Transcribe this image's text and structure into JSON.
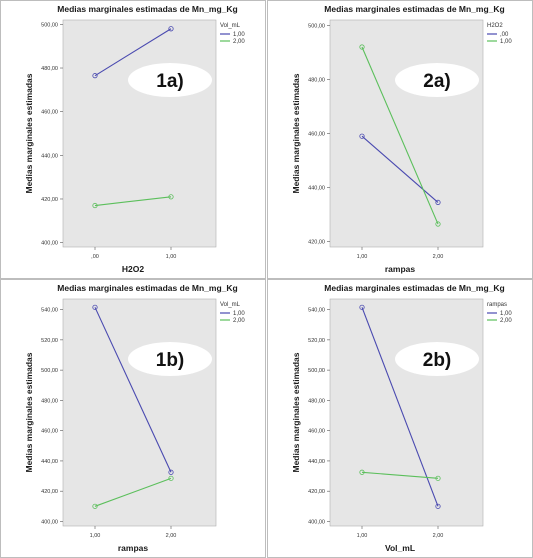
{
  "colors": {
    "plot_bg": "#e6e6e6",
    "series1": "#4a4ab0",
    "series2": "#5bbf5b",
    "badge_bg": "#ffffff"
  },
  "chart_data": [
    {
      "type": "line",
      "id": "1a",
      "badge": "1a)",
      "title": "Medias marginales estimadas de Mn_mg_Kg",
      "xlabel": "H2O2",
      "ylabel": "Medias marginales estimadas",
      "categories": [
        ",00",
        "1,00"
      ],
      "yticks": [
        "400,00",
        "420,00",
        "440,00",
        "460,00",
        "480,00",
        "500,00"
      ],
      "ylim": [
        398,
        502
      ],
      "legend_title": "Vol_mL",
      "series": [
        {
          "name": "1,00",
          "values": [
            476.5,
            498.0
          ]
        },
        {
          "name": "2,00",
          "values": [
            417.0,
            421.0
          ]
        }
      ]
    },
    {
      "type": "line",
      "id": "2a",
      "badge": "2a)",
      "title": "Medias marginales estimadas de Mn_mg_Kg",
      "xlabel": "rampas",
      "ylabel": "Medias marginales estimadas",
      "categories": [
        "1,00",
        "2,00"
      ],
      "yticks": [
        "420,00",
        "440,00",
        "460,00",
        "480,00",
        "500,00"
      ],
      "ylim": [
        418,
        502
      ],
      "legend_title": "H2O2",
      "series": [
        {
          "name": ",00",
          "values": [
            459.0,
            434.5
          ]
        },
        {
          "name": "1,00",
          "values": [
            492.0,
            426.5
          ]
        }
      ]
    },
    {
      "type": "line",
      "id": "1b",
      "badge": "1b)",
      "title": "Medias marginales estimadas de Mn_mg_Kg",
      "xlabel": "rampas",
      "ylabel": "Medias marginales estimadas",
      "categories": [
        "1,00",
        "2,00"
      ],
      "yticks": [
        "400,00",
        "420,00",
        "440,00",
        "460,00",
        "480,00",
        "500,00",
        "520,00",
        "540,00"
      ],
      "ylim": [
        397,
        547
      ],
      "legend_title": "Vol_mL",
      "series": [
        {
          "name": "1,00",
          "values": [
            541.5,
            432.5
          ]
        },
        {
          "name": "2,00",
          "values": [
            410.0,
            428.5
          ]
        }
      ]
    },
    {
      "type": "line",
      "id": "2b",
      "badge": "2b)",
      "title": "Medias marginales estimadas de Mn_mg_Kg",
      "xlabel": "Vol_mL",
      "ylabel": "Medias marginales estimadas",
      "categories": [
        "1,00",
        "2,00"
      ],
      "yticks": [
        "400,00",
        "420,00",
        "440,00",
        "460,00",
        "480,00",
        "500,00",
        "520,00",
        "540,00"
      ],
      "ylim": [
        397,
        547
      ],
      "legend_title": "rampas",
      "series": [
        {
          "name": "1,00",
          "values": [
            541.5,
            410.0
          ]
        },
        {
          "name": "2,00",
          "values": [
            432.5,
            428.5
          ]
        }
      ]
    }
  ]
}
